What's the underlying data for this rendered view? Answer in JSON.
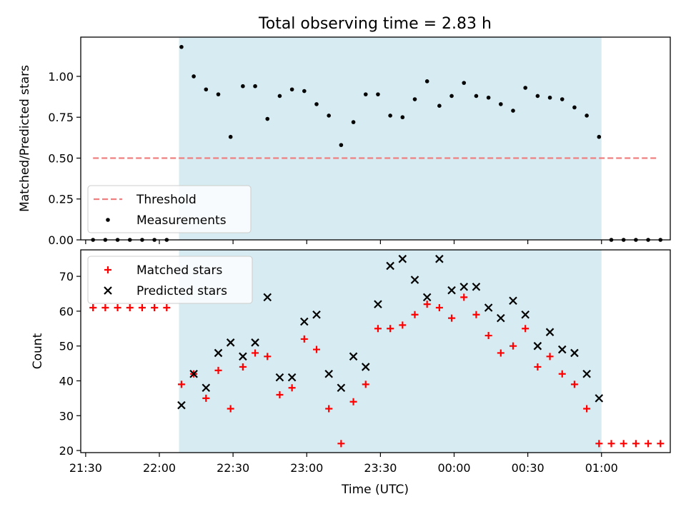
{
  "chart_data": [
    {
      "type": "scatter",
      "title": "Total observing time = 2.83 h",
      "xlabel": "",
      "ylabel": "Matched/Predicted stars",
      "ylim": [
        0,
        1.24
      ],
      "yticks": [
        0.0,
        0.25,
        0.5,
        0.75,
        1.0
      ],
      "ytick_labels": [
        "0.00",
        "0.25",
        "0.50",
        "0.75",
        "1.00"
      ],
      "legend": "lower-left",
      "shaded_interval": [
        "22:08",
        "01:00"
      ],
      "series": [
        {
          "name": "Threshold",
          "style": "dashed-line",
          "color": "#f08080",
          "x": [
            "21:33",
            "01:23"
          ],
          "y": [
            0.5,
            0.5
          ]
        },
        {
          "name": "Measurements",
          "style": "dot",
          "color": "#000000",
          "x": [
            "21:33",
            "21:38",
            "21:43",
            "21:48",
            "21:53",
            "21:58",
            "22:03",
            "22:09",
            "22:14",
            "22:19",
            "22:24",
            "22:29",
            "22:34",
            "22:39",
            "22:44",
            "22:49",
            "22:54",
            "22:59",
            "23:04",
            "23:09",
            "23:14",
            "23:19",
            "23:24",
            "23:29",
            "23:34",
            "23:39",
            "23:44",
            "23:49",
            "23:54",
            "23:59",
            "00:04",
            "00:09",
            "00:14",
            "00:19",
            "00:24",
            "00:29",
            "00:34",
            "00:39",
            "00:44",
            "00:49",
            "00:54",
            "00:59",
            "01:04",
            "01:09",
            "01:14",
            "01:19",
            "01:24"
          ],
          "y": [
            0,
            0,
            0,
            0,
            0,
            0,
            0,
            1.18,
            1.0,
            0.92,
            0.89,
            0.63,
            0.94,
            0.94,
            0.74,
            0.88,
            0.92,
            0.91,
            0.83,
            0.76,
            0.58,
            0.72,
            0.89,
            0.89,
            0.76,
            0.75,
            0.86,
            0.97,
            0.82,
            0.88,
            0.96,
            0.88,
            0.87,
            0.83,
            0.79,
            0.93,
            0.88,
            0.87,
            0.86,
            0.81,
            0.76,
            0.63,
            0,
            0,
            0,
            0,
            0
          ]
        }
      ]
    },
    {
      "type": "scatter",
      "title": "",
      "xlabel": "Time (UTC)",
      "ylabel": "Count",
      "ylim": [
        19.4,
        77.6
      ],
      "yticks": [
        20,
        30,
        40,
        50,
        60,
        70
      ],
      "xlim": [
        "21:28",
        "01:28"
      ],
      "xticks": [
        "21:30",
        "22:00",
        "22:30",
        "23:00",
        "23:30",
        "00:00",
        "00:30",
        "01:00"
      ],
      "legend": "upper-left",
      "shaded_interval": [
        "22:08",
        "01:00"
      ],
      "series": [
        {
          "name": "Matched stars",
          "style": "plus",
          "color": "#ff0000",
          "x": [
            "21:33",
            "21:38",
            "21:43",
            "21:48",
            "21:53",
            "21:58",
            "22:03",
            "22:09",
            "22:14",
            "22:19",
            "22:24",
            "22:29",
            "22:34",
            "22:39",
            "22:44",
            "22:49",
            "22:54",
            "22:59",
            "23:04",
            "23:09",
            "23:14",
            "23:19",
            "23:24",
            "23:29",
            "23:34",
            "23:39",
            "23:44",
            "23:49",
            "23:54",
            "23:59",
            "00:04",
            "00:09",
            "00:14",
            "00:19",
            "00:24",
            "00:29",
            "00:34",
            "00:39",
            "00:44",
            "00:49",
            "00:54",
            "00:59",
            "01:04",
            "01:09",
            "01:14",
            "01:19",
            "01:24"
          ],
          "y": [
            61,
            61,
            61,
            61,
            61,
            61,
            61,
            39,
            42,
            35,
            43,
            32,
            44,
            48,
            47,
            36,
            38,
            52,
            49,
            32,
            22,
            34,
            39,
            55,
            55,
            56,
            59,
            62,
            61,
            58,
            64,
            59,
            53,
            48,
            50,
            55,
            44,
            47,
            42,
            39,
            32,
            22,
            22,
            22,
            22,
            22,
            22
          ]
        },
        {
          "name": "Predicted stars",
          "style": "x",
          "color": "#000000",
          "x": [
            "22:09",
            "22:14",
            "22:19",
            "22:24",
            "22:29",
            "22:34",
            "22:39",
            "22:44",
            "22:49",
            "22:54",
            "22:59",
            "23:04",
            "23:09",
            "23:14",
            "23:19",
            "23:24",
            "23:29",
            "23:34",
            "23:39",
            "23:44",
            "23:49",
            "23:54",
            "23:59",
            "00:04",
            "00:09",
            "00:14",
            "00:19",
            "00:24",
            "00:29",
            "00:34",
            "00:39",
            "00:44",
            "00:49",
            "00:54",
            "00:59"
          ],
          "y": [
            33,
            42,
            38,
            48,
            51,
            47,
            51,
            64,
            41,
            41,
            57,
            59,
            42,
            38,
            47,
            44,
            62,
            73,
            75,
            69,
            64,
            75,
            66,
            67,
            67,
            61,
            58,
            63,
            59,
            50,
            54,
            49,
            48,
            42,
            35
          ]
        }
      ]
    }
  ]
}
